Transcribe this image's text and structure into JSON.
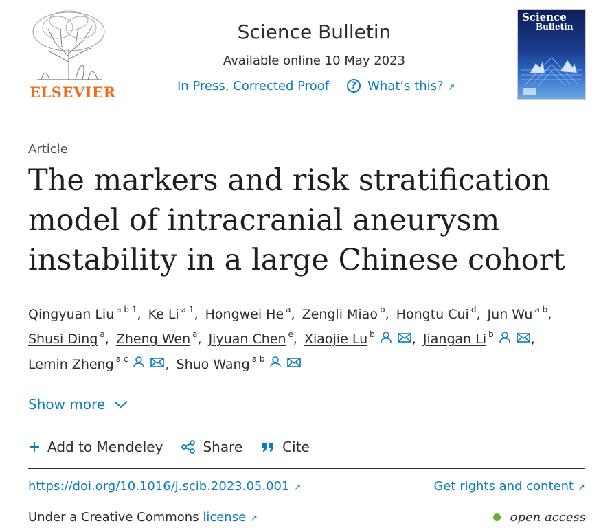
{
  "publisher": {
    "name": "ELSEVIER"
  },
  "journal": {
    "title": "Science Bulletin",
    "available": "Available online 10 May 2023",
    "status_link": "In Press, Corrected Proof",
    "help_label": "What’s this?",
    "cover_title_line1": "Science",
    "cover_title_line2": "Bulletin"
  },
  "article": {
    "type": "Article",
    "title": "The markers and risk stratification model of intracranial aneurysm instability in a large Chinese cohort"
  },
  "authors": [
    {
      "name": "Qingyuan Liu",
      "sup": "a b 1",
      "icons": []
    },
    {
      "name": "Ke Li",
      "sup": "a 1",
      "icons": []
    },
    {
      "name": "Hongwei He",
      "sup": "a",
      "icons": []
    },
    {
      "name": "Zengli Miao",
      "sup": "b",
      "icons": []
    },
    {
      "name": "Hongtu Cui",
      "sup": "d",
      "icons": []
    },
    {
      "name": "Jun Wu",
      "sup": "a b",
      "icons": []
    },
    {
      "name": "Shusi Ding",
      "sup": "a",
      "icons": []
    },
    {
      "name": "Zheng Wen",
      "sup": "a",
      "icons": []
    },
    {
      "name": "Jiyuan Chen",
      "sup": "e",
      "icons": []
    },
    {
      "name": "Xiaojie Lu",
      "sup": "b",
      "icons": [
        "person-icon",
        "envelope-icon"
      ]
    },
    {
      "name": "Jiangan Li",
      "sup": "b",
      "icons": [
        "person-icon",
        "envelope-icon"
      ]
    },
    {
      "name": "Lemin Zheng",
      "sup": "a c",
      "icons": [
        "person-icon",
        "envelope-icon"
      ]
    },
    {
      "name": "Shuo Wang",
      "sup": "a b",
      "icons": [
        "person-icon",
        "envelope-icon"
      ]
    }
  ],
  "show_more": "Show more",
  "actions": {
    "mendeley": "Add to Mendeley",
    "share": "Share",
    "cite": "Cite"
  },
  "doi": "https://doi.org/10.1016/j.scib.2023.05.001",
  "rights": "Get rights and content",
  "license": {
    "prefix": "Under a Creative Commons",
    "link": "license"
  },
  "access": "open access",
  "colors": {
    "accent": "#0c7dbb",
    "elsevier_orange": "#e9711c",
    "open_access_green": "#5fb233"
  }
}
